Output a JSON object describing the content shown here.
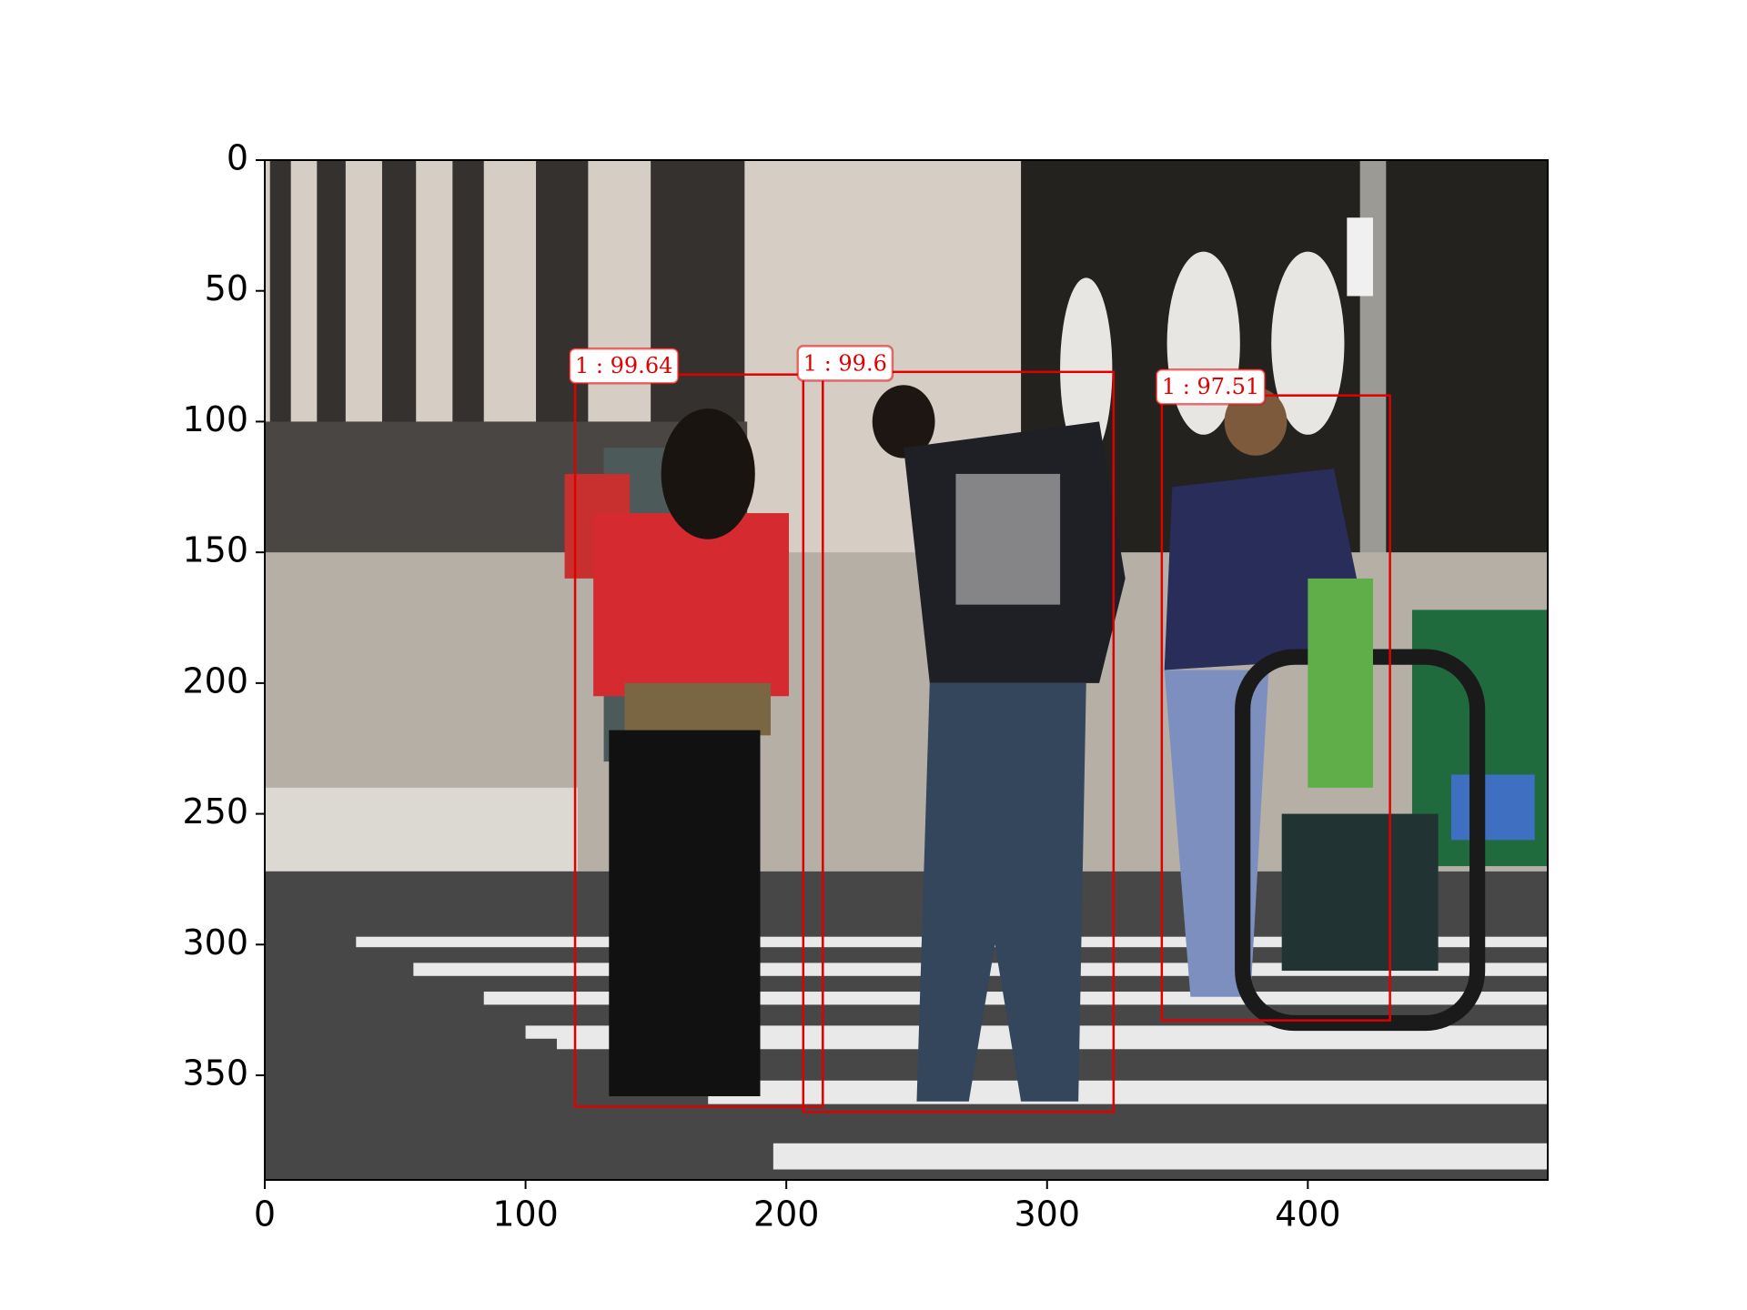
{
  "chart_data": {
    "type": "image-detections",
    "xlim": [
      0,
      492
    ],
    "ylim": [
      390,
      0
    ],
    "xticks": [
      0,
      100,
      200,
      300,
      400
    ],
    "yticks": [
      0,
      50,
      100,
      150,
      200,
      250,
      300,
      350
    ],
    "box_color": "#e00000",
    "boxes": [
      {
        "label": "1 : 99.64",
        "x0": 119,
        "y0": 82,
        "x1": 214,
        "y1": 362
      },
      {
        "label": "1 : 99.6",
        "x0": 206.5,
        "y0": 81,
        "x1": 325.5,
        "y1": 364
      },
      {
        "label": "1 : 97.51",
        "x0": 344,
        "y0": 90,
        "x1": 431.5,
        "y1": 329
      }
    ]
  }
}
